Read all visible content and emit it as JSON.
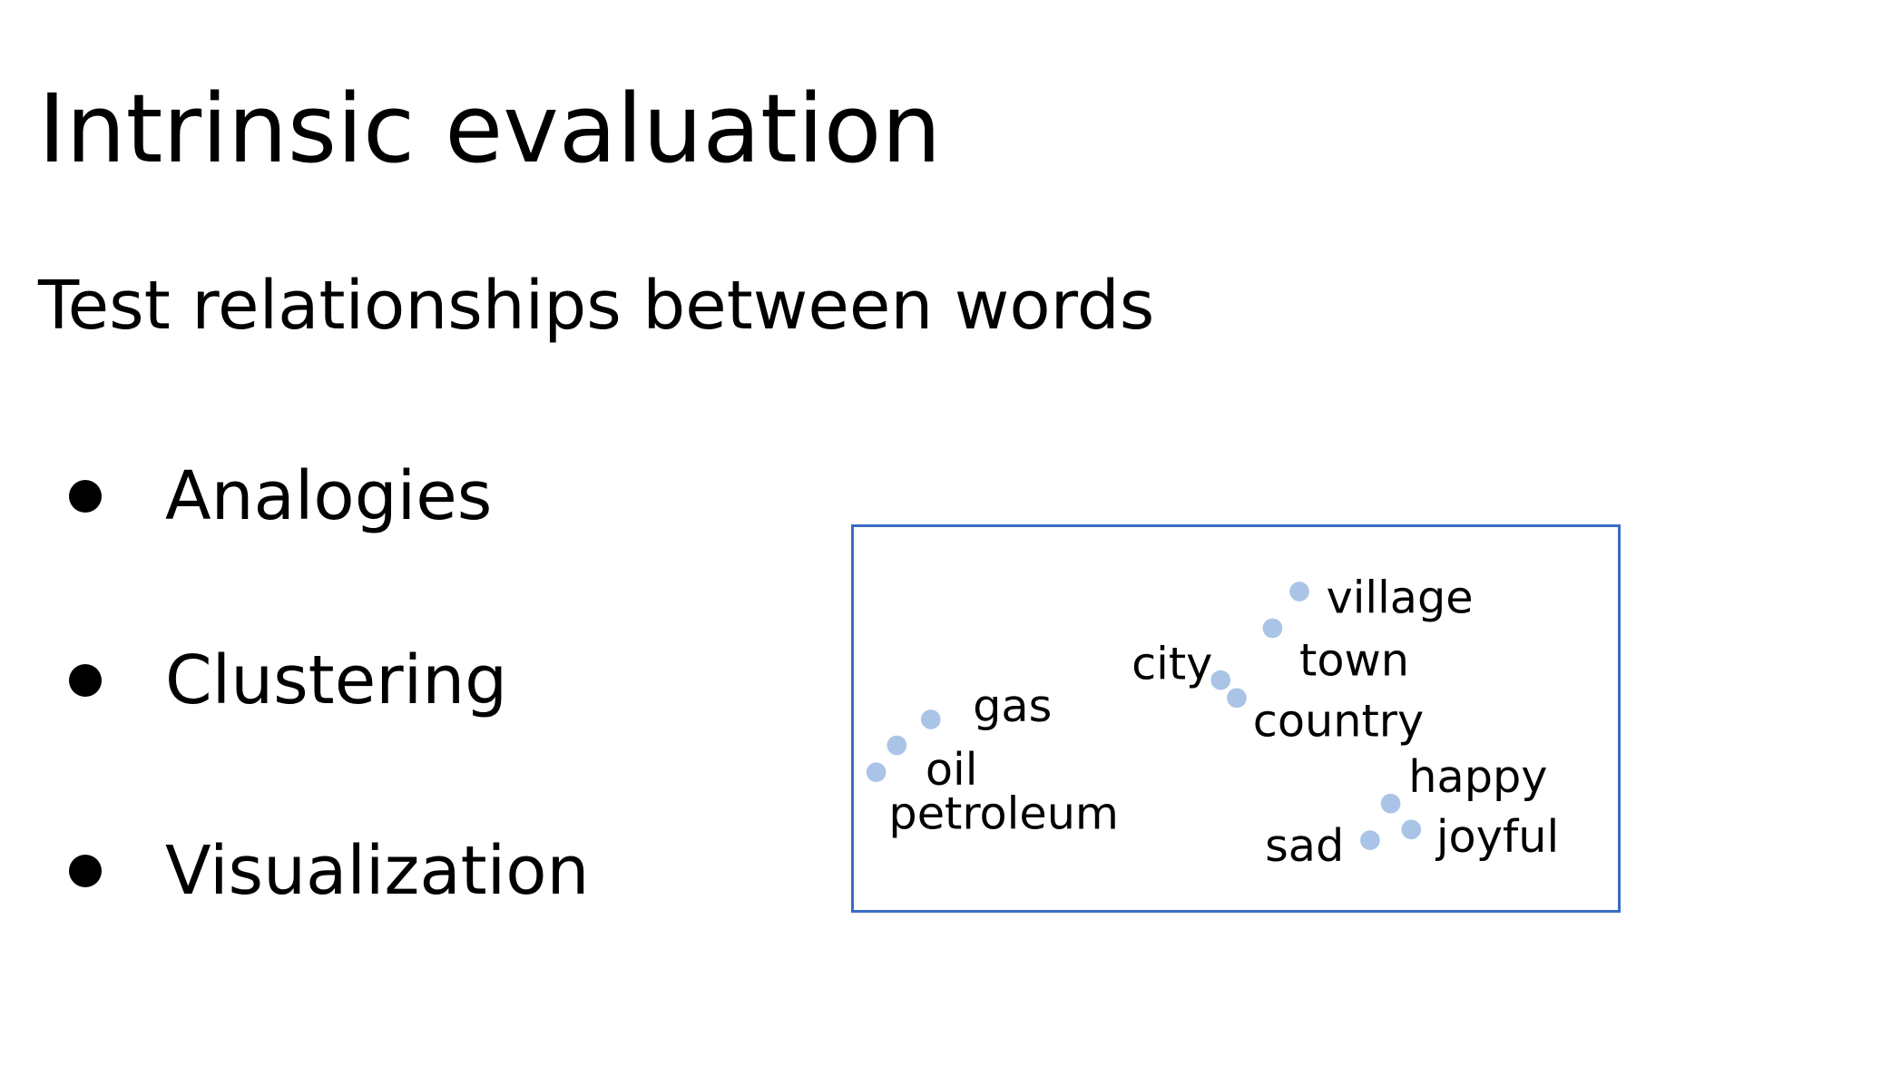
{
  "slide": {
    "title": "Intrinsic evaluation",
    "subtitle": "Test relationships between words",
    "bullets": [
      "Analogies",
      "Clustering",
      "Visualization"
    ]
  },
  "visualization": {
    "dot_color": "#a9c4e6",
    "border_color": "#3b6cc4",
    "words": [
      {
        "label": "gas",
        "group": "fuel"
      },
      {
        "label": "oil",
        "group": "fuel"
      },
      {
        "label": "petroleum",
        "group": "fuel"
      },
      {
        "label": "city",
        "group": "place"
      },
      {
        "label": "country",
        "group": "place"
      },
      {
        "label": "town",
        "group": "place"
      },
      {
        "label": "village",
        "group": "place"
      },
      {
        "label": "happy",
        "group": "emotion"
      },
      {
        "label": "sad",
        "group": "emotion"
      },
      {
        "label": "joyful",
        "group": "emotion"
      }
    ]
  }
}
